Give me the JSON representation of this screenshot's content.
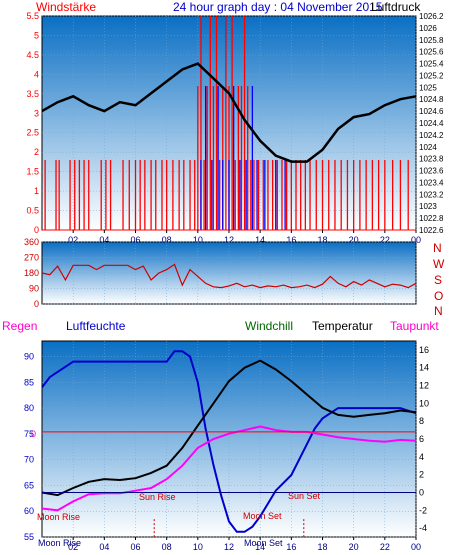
{
  "header": {
    "left_label": "Windstärke",
    "title": "24 hour graph day : 04 November 2015",
    "right_label": "Luftdruck"
  },
  "lower_header": {
    "rain_label": "Regen",
    "humidity_label": "Luftfeuchte",
    "windchill_label": "Windchill",
    "temperature_label": "Temperatur",
    "dewpoint_label": "Taupunkt"
  },
  "direction_labels": [
    "N",
    "W",
    "S",
    "O",
    "N"
  ],
  "annotations": {
    "moon_rise": "Moon Rise",
    "sun_rise": "Sun Rise",
    "moon_set": "Moon Set",
    "sun_set": "Sun Set",
    "zero_label": "0"
  },
  "colors": {
    "wind_speed": "#ff0000",
    "wind_gust": "#0000ff",
    "pressure": "#000000",
    "direction": "#cc0000",
    "humidity": "#0000cc",
    "temperature": "#000000",
    "dewpoint": "#ff00ff",
    "rain": "#ff0000",
    "panel_top": "#0a6fc4",
    "panel_bottom": "#ffffff"
  },
  "chart_data": [
    {
      "type": "bar",
      "x_ticks": [
        "02",
        "04",
        "06",
        "08",
        "10",
        "12",
        "14",
        "16",
        "18",
        "20",
        "22",
        "00"
      ],
      "xlim": [
        0,
        24
      ],
      "left_axis": {
        "label": "Windstärke",
        "ylim": [
          0,
          5.5
        ],
        "ticks": [
          "0",
          "0.5",
          "1",
          "1.5",
          "2",
          "2.5",
          "3",
          "3.5",
          "4",
          "4.5",
          "5",
          "5.5"
        ]
      },
      "right_axis": {
        "label": "Luftdruck",
        "ylim": [
          1022.6,
          1026.2
        ],
        "ticks": [
          "1022.6",
          "1022.8",
          "1023",
          "1023.2",
          "1023.4",
          "1023.6",
          "1023.8",
          "1024",
          "1024.2",
          "1024.4",
          "1024.6",
          "1024.8",
          "1025",
          "1025.2",
          "1025.4",
          "1025.6",
          "1025.8",
          "1026",
          "1026.2"
        ]
      },
      "wind_speed_hours": [
        0.2,
        0.9,
        1.1,
        1.8,
        2.1,
        2.4,
        2.7,
        3.0,
        3.8,
        4.1,
        4.4,
        5.2,
        5.6,
        6.0,
        6.3,
        6.6,
        7.0,
        7.3,
        7.7,
        8.0,
        8.4,
        8.8,
        9.1,
        9.5,
        9.8,
        10.0,
        10.2,
        10.4,
        10.6,
        10.8,
        11.0,
        11.2,
        11.4,
        11.6,
        11.8,
        12.0,
        12.2,
        12.4,
        12.6,
        12.8,
        13.0,
        13.2,
        13.4,
        13.6,
        13.9,
        14.2,
        14.5,
        14.8,
        15.1,
        15.4,
        15.7,
        16.0,
        16.3,
        16.6,
        16.9,
        17.2,
        17.6,
        18.0,
        18.4,
        18.8,
        19.2,
        19.6,
        20.0,
        20.4,
        20.8,
        21.2,
        21.6,
        22.0,
        22.5,
        23.0,
        23.5
      ],
      "wind_speed_values": [
        1.8,
        1.8,
        1.8,
        1.8,
        1.8,
        1.8,
        1.8,
        1.8,
        1.8,
        1.8,
        1.8,
        1.8,
        1.8,
        1.8,
        1.8,
        1.8,
        1.8,
        1.8,
        1.8,
        1.8,
        1.8,
        1.8,
        1.8,
        1.8,
        1.8,
        3.7,
        5.5,
        1.8,
        3.7,
        5.5,
        3.7,
        5.5,
        1.8,
        3.7,
        5.5,
        3.7,
        5.5,
        1.8,
        3.7,
        3.7,
        5.5,
        3.7,
        1.8,
        1.8,
        1.8,
        1.8,
        1.8,
        1.8,
        1.8,
        1.8,
        1.8,
        1.8,
        1.8,
        1.8,
        1.8,
        1.8,
        1.8,
        1.8,
        1.8,
        1.8,
        1.8,
        1.8,
        1.8,
        1.8,
        1.8,
        1.8,
        1.8,
        1.8,
        1.8,
        1.8,
        1.8
      ],
      "wind_gust_hours": [
        10.2,
        10.5,
        10.9,
        11.3,
        11.6,
        12.0,
        12.3,
        12.7,
        13.1,
        13.5,
        13.8,
        14.3,
        15.0,
        15.6
      ],
      "wind_gust_values": [
        1.8,
        3.7,
        1.8,
        3.7,
        1.8,
        1.8,
        3.7,
        1.8,
        1.8,
        3.7,
        1.8,
        1.8,
        1.8,
        1.8
      ],
      "pressure_hours": [
        0,
        1,
        2,
        3,
        4,
        5,
        6,
        7,
        8,
        9,
        10,
        11,
        12,
        13,
        14,
        15,
        16,
        17,
        18,
        19,
        20,
        21,
        22,
        23,
        24
      ],
      "pressure_values": [
        1024.6,
        1024.75,
        1024.85,
        1024.7,
        1024.6,
        1024.75,
        1024.7,
        1024.9,
        1025.1,
        1025.3,
        1025.4,
        1025.15,
        1024.9,
        1024.45,
        1024.1,
        1023.85,
        1023.75,
        1023.75,
        1023.95,
        1024.3,
        1024.5,
        1024.55,
        1024.7,
        1024.8,
        1024.85
      ]
    },
    {
      "type": "line",
      "x_ticks": [
        "02",
        "04",
        "06",
        "08",
        "10",
        "12",
        "14",
        "16",
        "18",
        "20",
        "22",
        "00"
      ],
      "xlim": [
        0,
        24
      ],
      "ylim": [
        0,
        360
      ],
      "y_ticks": [
        "0",
        "90",
        "180",
        "270",
        "360"
      ],
      "direction_hours": [
        0,
        0.5,
        1,
        1.5,
        2,
        2.5,
        3,
        3.5,
        4,
        4.5,
        5,
        5.5,
        6,
        6.5,
        7,
        7.5,
        8,
        8.5,
        9,
        9.5,
        10,
        10.5,
        11,
        11.5,
        12,
        12.5,
        13,
        13.5,
        14,
        14.5,
        15,
        15.5,
        16,
        16.5,
        17,
        17.5,
        18,
        18.5,
        19,
        19.5,
        20,
        20.5,
        21,
        21.5,
        22,
        22.5,
        23,
        23.5,
        24
      ],
      "direction_values": [
        180,
        170,
        220,
        140,
        225,
        225,
        225,
        200,
        225,
        225,
        225,
        225,
        200,
        220,
        140,
        180,
        200,
        230,
        110,
        200,
        160,
        120,
        100,
        95,
        105,
        120,
        100,
        110,
        95,
        105,
        100,
        110,
        95,
        100,
        110,
        95,
        115,
        160,
        120,
        100,
        130,
        110,
        140,
        120,
        100,
        115,
        110,
        95,
        120
      ]
    },
    {
      "type": "line",
      "x_ticks": [
        "02",
        "04",
        "06",
        "08",
        "10",
        "12",
        "14",
        "16",
        "18",
        "20",
        "22",
        "00"
      ],
      "xlim": [
        0,
        24
      ],
      "left_axis": {
        "label": "Luftfeuchte",
        "ylim": [
          55,
          93
        ],
        "ticks": [
          "55",
          "60",
          "65",
          "70",
          "75",
          "80",
          "85",
          "90"
        ]
      },
      "right_axis": {
        "label": "Temperatur",
        "ylim": [
          -5,
          17
        ],
        "ticks": [
          "-4",
          "-2",
          "0",
          "2",
          "4",
          "6",
          "8",
          "10",
          "12",
          "14",
          "16"
        ]
      },
      "series": [
        {
          "name": "Luftfeuchte",
          "axis": "left",
          "hours": [
            0,
            0.5,
            1,
            1.5,
            2,
            3,
            4,
            5,
            6,
            7,
            8,
            8.5,
            9,
            9.5,
            10,
            10.5,
            11,
            11.5,
            12,
            12.5,
            13,
            13.5,
            14,
            15,
            16,
            17,
            17.5,
            18,
            19,
            20,
            21,
            22,
            23,
            24
          ],
          "values": [
            84,
            86,
            87,
            88,
            89,
            89,
            89,
            89,
            89,
            89,
            89,
            91,
            91,
            90,
            85,
            76,
            69,
            63,
            58,
            56,
            56,
            57,
            59,
            64,
            67,
            73,
            76,
            78,
            80,
            80,
            80,
            80,
            80,
            79
          ]
        },
        {
          "name": "Temperatur",
          "axis": "right",
          "hours": [
            0,
            1,
            2,
            3,
            4,
            5,
            6,
            7,
            8,
            9,
            10,
            11,
            12,
            13,
            14,
            15,
            16,
            17,
            18,
            19,
            20,
            21,
            22,
            23,
            24
          ],
          "values": [
            0,
            -0.3,
            0.5,
            1.2,
            1.5,
            1.4,
            1.6,
            2.2,
            3.0,
            5.0,
            7.5,
            10.0,
            12.5,
            14.0,
            14.8,
            13.8,
            12.5,
            11.0,
            9.5,
            8.7,
            8.5,
            8.7,
            8.9,
            9.2,
            9.0
          ]
        },
        {
          "name": "Taupunkt",
          "axis": "right",
          "hours": [
            0,
            1,
            2,
            3,
            4,
            5,
            6,
            7,
            8,
            9,
            10,
            11,
            12,
            13,
            14,
            15,
            16,
            17,
            18,
            19,
            20,
            21,
            22,
            23,
            24
          ],
          "values": [
            -1.8,
            -2.0,
            -1.0,
            -0.2,
            -0.1,
            -0.1,
            0.2,
            0.5,
            1.5,
            3.0,
            5.0,
            6.0,
            6.6,
            7.0,
            7.4,
            7.0,
            6.8,
            6.8,
            6.5,
            6.2,
            6.0,
            5.8,
            5.7,
            5.9,
            5.8
          ]
        },
        {
          "name": "Regen",
          "axis": "right",
          "hours": [
            0,
            24
          ],
          "values": [
            6.8,
            6.8
          ]
        },
        {
          "name": "Windchill",
          "axis": "right",
          "hours": [
            0,
            24
          ],
          "values": [
            0,
            0
          ]
        }
      ],
      "sun_rise_hour": 7.2,
      "sun_set_hour": 16.8
    }
  ]
}
